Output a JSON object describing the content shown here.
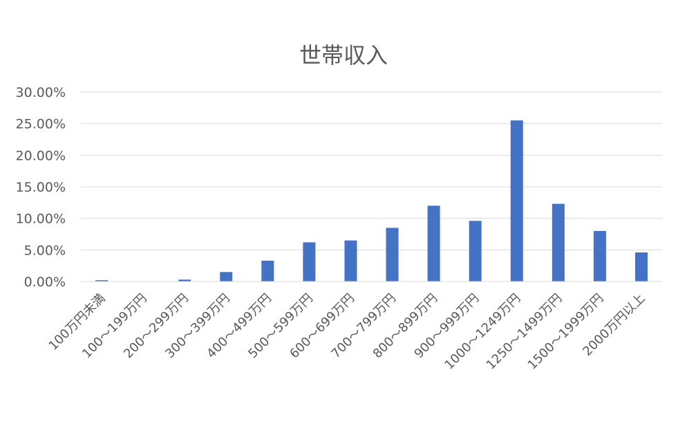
{
  "chart_data": {
    "type": "bar",
    "title": "世帯収入",
    "xlabel": "",
    "ylabel": "",
    "ylim": [
      0,
      0.3
    ],
    "y_tick_values": [
      0,
      0.05,
      0.1,
      0.15,
      0.2,
      0.25,
      0.3
    ],
    "y_tick_labels": [
      "0.00%",
      "5.00%",
      "10.00%",
      "15.00%",
      "20.00%",
      "25.00%",
      "30.00%"
    ],
    "grid": true,
    "legend": "none",
    "bar_color": "#4472C4",
    "grid_color": "#D9D9D9",
    "text_color": "#595959",
    "categories": [
      "100万円未満",
      "100～199万円",
      "200～299万円",
      "300～399万円",
      "400～499万円",
      "500～599万円",
      "600～699万円",
      "700～799万円",
      "800～899万円",
      "900～999万円",
      "1000～1249万円",
      "1250～1499万円",
      "1500～1999万円",
      "2000万円以上"
    ],
    "values": [
      0.002,
      0.0,
      0.003,
      0.015,
      0.033,
      0.062,
      0.065,
      0.085,
      0.12,
      0.096,
      0.255,
      0.123,
      0.08,
      0.046
    ]
  }
}
